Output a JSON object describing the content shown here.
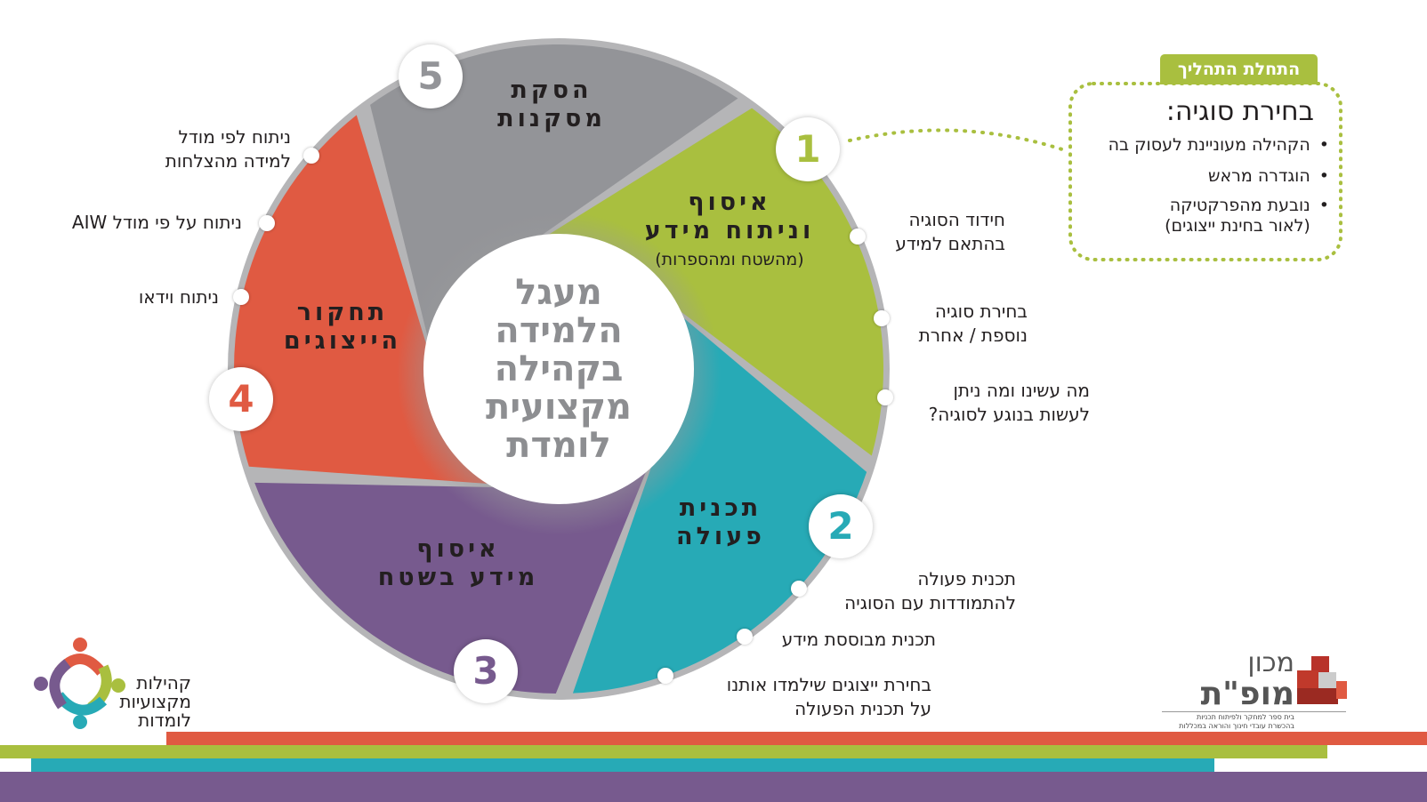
{
  "colors": {
    "green": "#a9bf3f",
    "teal": "#27aab6",
    "purple": "#775a8e",
    "orange": "#e05a42",
    "gray": "#939498",
    "center_text": "#8d8e91"
  },
  "center": {
    "lines": [
      "מעגל",
      "הלמידה",
      "בקהילה",
      "מקצועית",
      "לומדת"
    ]
  },
  "segments": [
    {
      "number": "1",
      "title": [
        "איסוף",
        "וניתוח מידע"
      ],
      "subtitle": "(מהשטח ומהספרות)",
      "color": "green"
    },
    {
      "number": "2",
      "title": [
        "תכנית",
        "פעולה"
      ],
      "color": "teal"
    },
    {
      "number": "3",
      "title": [
        "איסוף",
        "מידע בשטח"
      ],
      "color": "purple"
    },
    {
      "number": "4",
      "title": [
        "תחקור",
        "הייצוגים"
      ],
      "color": "orange"
    },
    {
      "number": "5",
      "title": [
        "הסקת",
        "מסקנות"
      ],
      "color": "gray"
    }
  ],
  "annotations": {
    "seg1": [
      [
        "חידוד הסוגיה",
        "בהתאם למידע"
      ],
      [
        "בחירת סוגיה",
        "נוספת / אחרת"
      ],
      [
        "מה עשינו ומה ניתן",
        "לעשות בנוגע לסוגיה?"
      ]
    ],
    "seg2": [
      [
        "תכנית פעולה",
        "להתמודדות עם הסוגיה"
      ],
      [
        "תכנית מבוססת מידע"
      ],
      [
        "בחירת ייצוגים שילמדו אותנו",
        "על תכנית הפעולה"
      ]
    ],
    "seg4": [
      [
        "ניתוח לפי מודל",
        "למידה מהצלחות"
      ],
      [
        "ניתוח על פי מודל AIW"
      ],
      [
        "ניתוח וידאו"
      ]
    ]
  },
  "start_box": {
    "tag": "התחלת התהליך",
    "title": "בחירת סוגיה:",
    "bullets": [
      "הקהילה מעוניינת לעסוק בה",
      "הוגדרה מראש",
      "נובעת מהפרקטיקה\n(לאור בחינת ייצוגים)"
    ]
  },
  "logo_left": {
    "lines": [
      "קהילות",
      "מקצועיות",
      "לומדות"
    ]
  },
  "logo_right": {
    "name_top": "מכון",
    "name_bottom": "מופ\"ת",
    "tagline": [
      "בית ספר למחקר ולפיתוח תכניות",
      "בהכשרת עובדי חינוך והוראה במכללות"
    ]
  }
}
